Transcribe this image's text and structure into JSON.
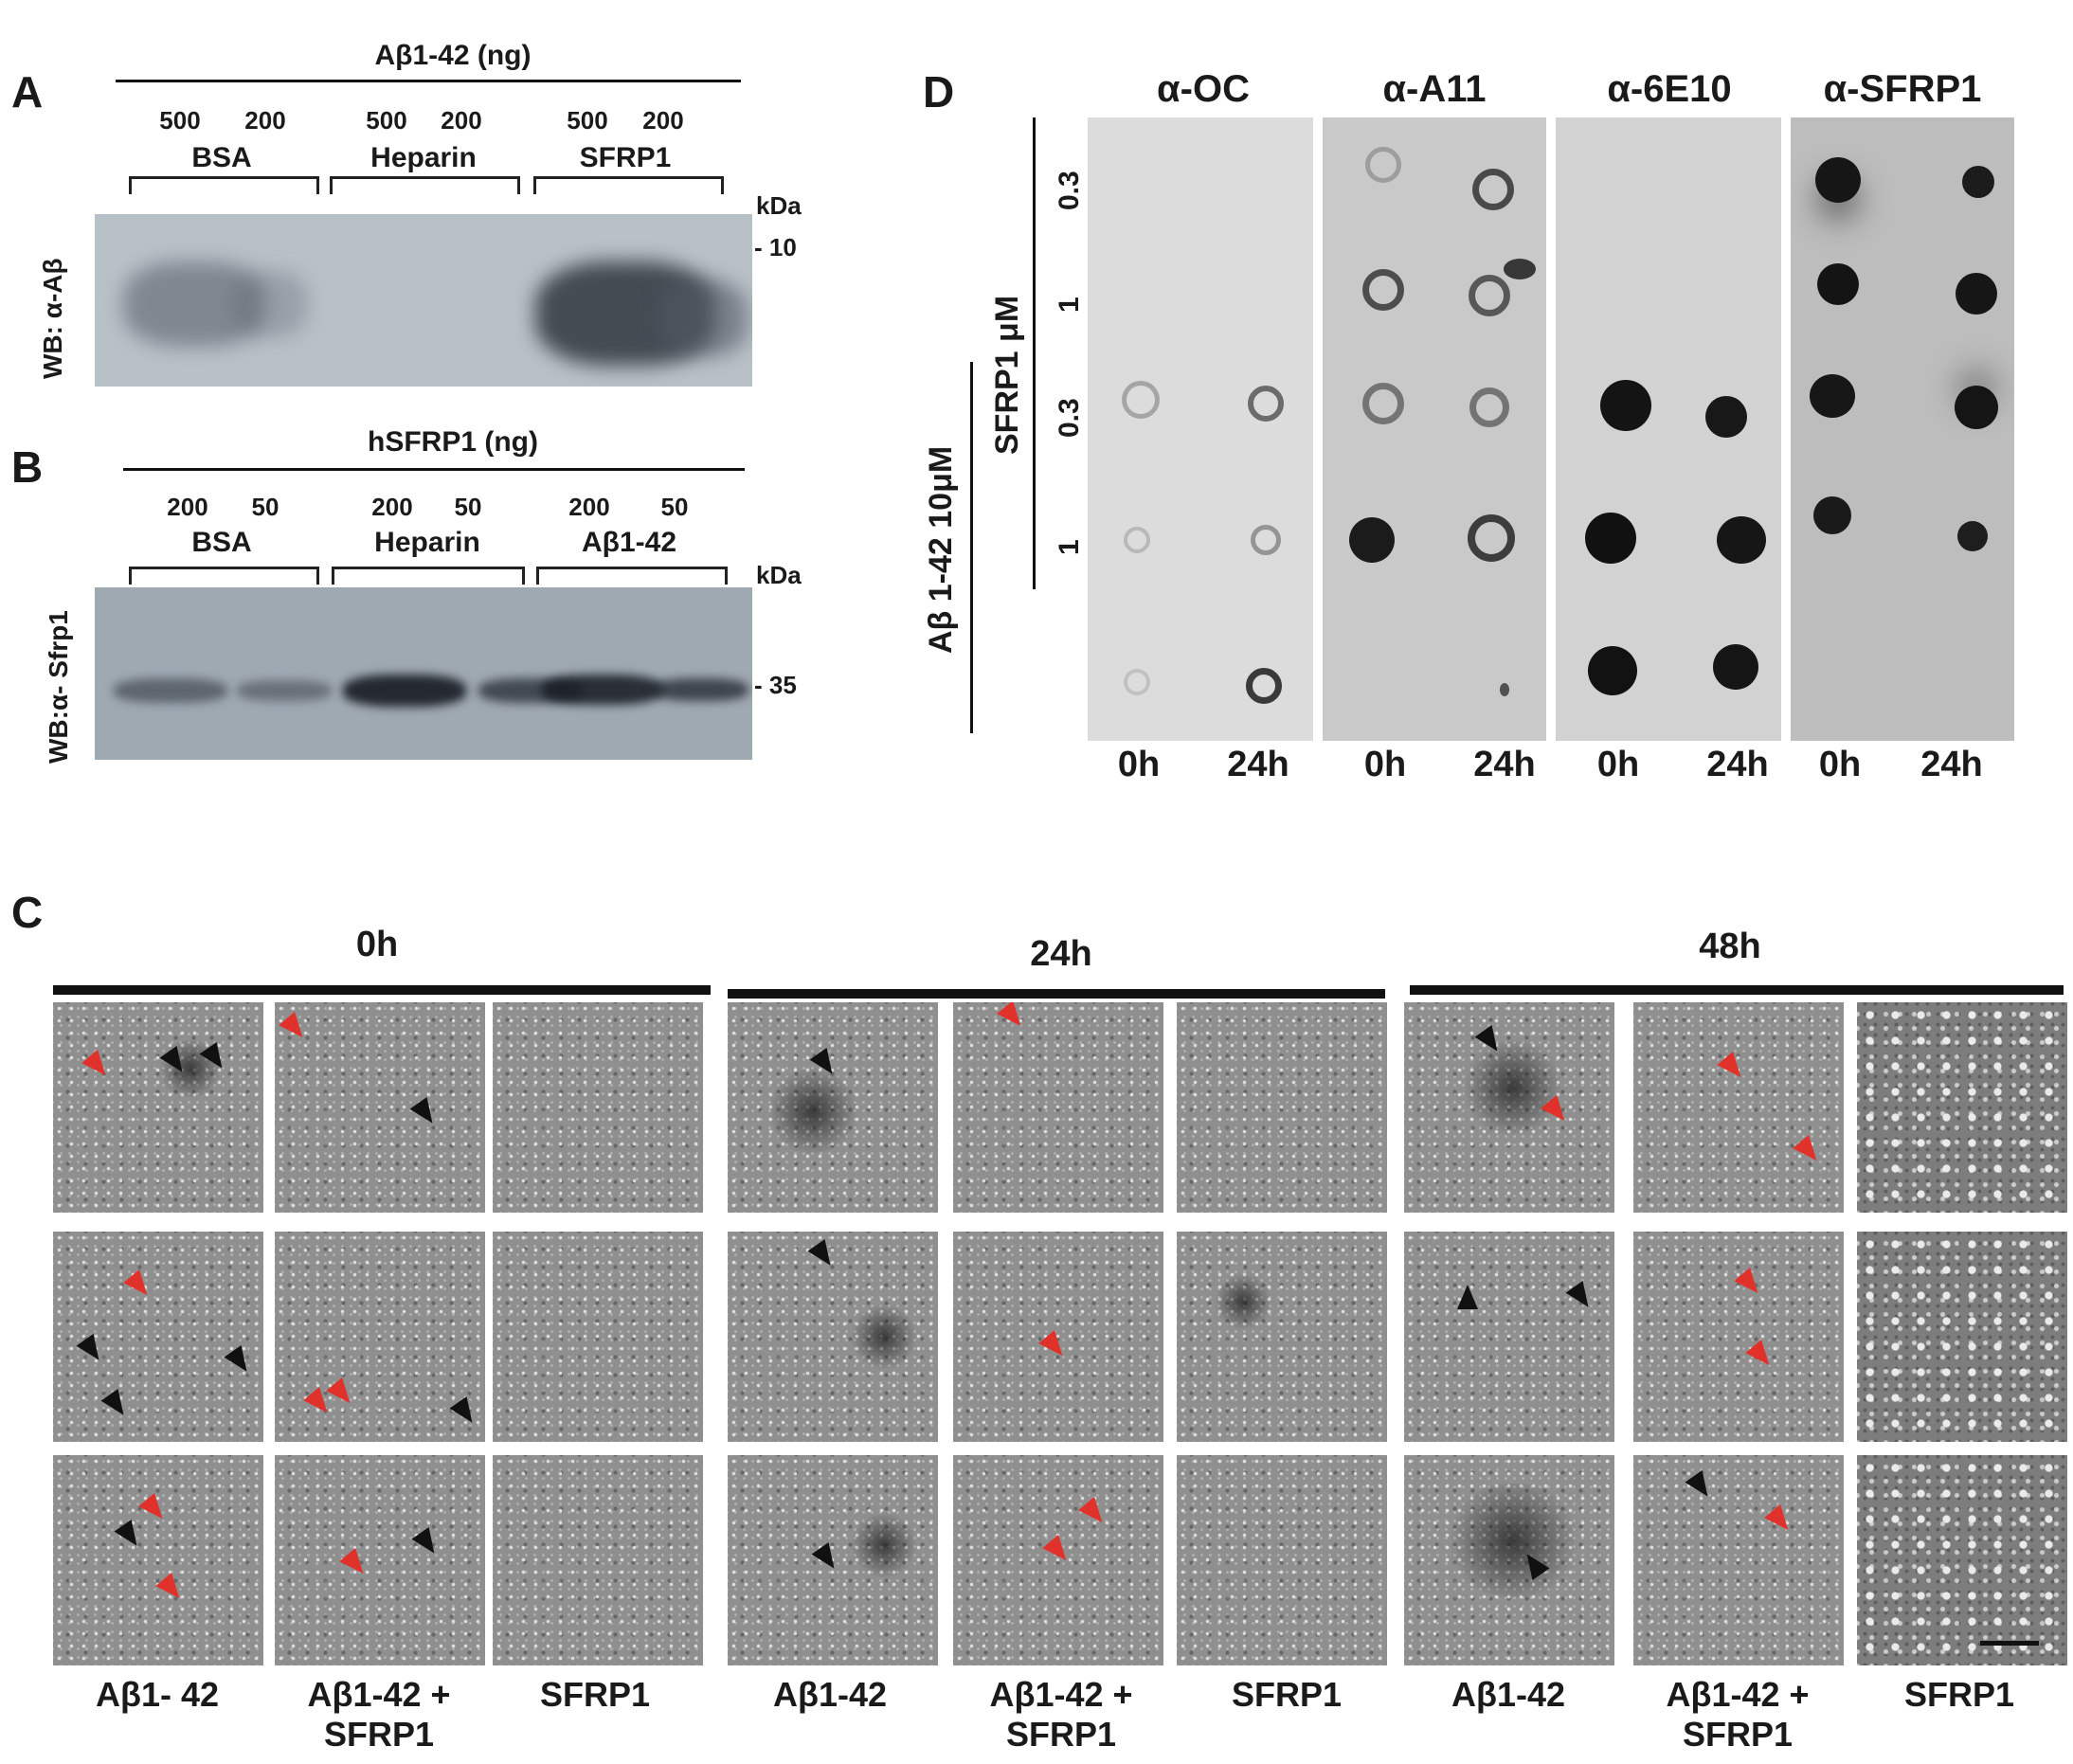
{
  "panelA": {
    "letter": "A",
    "top_title": "Aβ1-42 (ng)",
    "amounts": [
      "500",
      "200",
      "500",
      "200",
      "500",
      "200"
    ],
    "groups": [
      "BSA",
      "Heparin",
      "SFRP1"
    ],
    "kda_label": "kDa",
    "marker": "- 10",
    "ylabel": "WB: α-Aβ"
  },
  "panelB": {
    "letter": "B",
    "top_title": "hSFRP1 (ng)",
    "amounts": [
      "200",
      "50",
      "200",
      "50",
      "200",
      "50"
    ],
    "groups": [
      "BSA",
      "Heparin",
      "Aβ1-42"
    ],
    "kda_label": "kDa",
    "marker": "- 35",
    "ylabel": "WB:α- Sfrp1"
  },
  "panelD": {
    "letter": "D",
    "antibodies": [
      "α-OC",
      "α-A11",
      "α-6E10",
      "α-SFRP1"
    ],
    "times": [
      "0h",
      "24h",
      "0h",
      "24h",
      "0h",
      "24h",
      "0h",
      "24h"
    ],
    "sfrp1_label": "SFRP1 μM",
    "abeta_label": "Aβ 1-42 10μM",
    "row_labels": [
      "0.3",
      "1",
      "0.3",
      "1"
    ]
  },
  "panelC": {
    "letter": "C",
    "time_headers": [
      "0h",
      "24h",
      "48h"
    ],
    "column_labels": [
      [
        "Aβ1- 42",
        ""
      ],
      [
        "Aβ1-42 +",
        "SFRP1"
      ],
      [
        "SFRP1",
        ""
      ],
      [
        "Aβ1-42",
        ""
      ],
      [
        "Aβ1-42 +",
        "SFRP1"
      ],
      [
        "SFRP1",
        ""
      ],
      [
        "Aβ1-42",
        ""
      ],
      [
        "Aβ1-42 +",
        "SFRP1"
      ],
      [
        "SFRP1",
        ""
      ]
    ]
  },
  "colors": {
    "red_arrow": "#e0312b",
    "black_arrow": "#111111",
    "blot_bg": "#b9c1c8"
  }
}
